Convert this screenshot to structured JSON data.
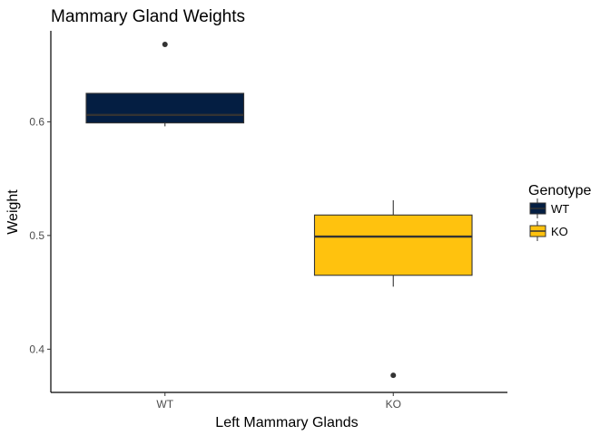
{
  "chart_data": {
    "type": "box",
    "title": "Mammary Gland Weights",
    "xlabel": "Left Mammary Glands",
    "ylabel": "Weight",
    "ylim": [
      0.362,
      0.68
    ],
    "y_ticks": [
      0.4,
      0.5,
      0.6
    ],
    "y_tick_labels": [
      "0.4",
      "0.5",
      "0.6"
    ],
    "categories": [
      "WT",
      "KO"
    ],
    "grid": false,
    "legend": {
      "title": "Genotype",
      "position": "right",
      "entries": [
        "WT",
        "KO"
      ]
    },
    "series": [
      {
        "name": "WT",
        "color": "#041E42",
        "stats": {
          "whisker_low": 0.596,
          "q1": 0.599,
          "median": 0.606,
          "q3": 0.625,
          "whisker_high": 0.625
        },
        "outliers": [
          0.668
        ]
      },
      {
        "name": "KO",
        "color": "#FFC20E",
        "stats": {
          "whisker_low": 0.455,
          "q1": 0.465,
          "median": 0.499,
          "q3": 0.518,
          "whisker_high": 0.531
        },
        "outliers": [
          0.377
        ]
      }
    ]
  }
}
